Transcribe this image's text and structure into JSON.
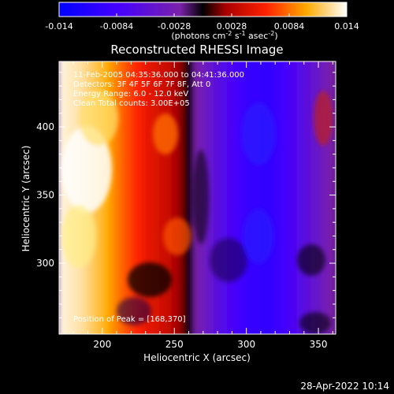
{
  "chart_data": {
    "type": "heatmap",
    "title": "Reconstructed RHESSI Image",
    "xlabel": "Heliocentric X (arcsec)",
    "ylabel": "Heliocentric Y (arcsec)",
    "xlim": [
      170,
      362
    ],
    "ylim": [
      248,
      448
    ],
    "x_ticks": [
      200,
      250,
      300,
      350
    ],
    "y_ticks": [
      300,
      350,
      400
    ],
    "colorbar": {
      "label_parts": [
        "(photons cm",
        "-2",
        " s",
        "-1",
        " asec",
        "-2",
        ")"
      ],
      "ticks": [
        "-0.014",
        "-0.0084",
        "-0.0028",
        "0.0028",
        "0.0084",
        "0.014"
      ],
      "range": [
        -0.014,
        0.014
      ]
    },
    "annotations": {
      "time_range": "11-Feb-2005 04:35:36.000 to 04:41:36.000",
      "detectors": "Detectors: 3F 4F 5F 6F 7F 8F, Att 0",
      "energy": "Energy Range: 6.0 - 12.0 keV",
      "clean": "Clean     Total counts: 3.00E+05",
      "peak": "Position of Peak = [168,370]"
    },
    "intensity_profile_x": [
      {
        "x": 170,
        "v": 0.0135
      },
      {
        "x": 185,
        "v": 0.0125
      },
      {
        "x": 200,
        "v": 0.0105
      },
      {
        "x": 215,
        "v": 0.0078
      },
      {
        "x": 230,
        "v": 0.0055
      },
      {
        "x": 245,
        "v": 0.004
      },
      {
        "x": 255,
        "v": 0.002
      },
      {
        "x": 265,
        "v": -0.003
      },
      {
        "x": 280,
        "v": -0.0065
      },
      {
        "x": 300,
        "v": -0.0095
      },
      {
        "x": 315,
        "v": -0.01
      },
      {
        "x": 335,
        "v": -0.007
      },
      {
        "x": 350,
        "v": -0.0045
      },
      {
        "x": 362,
        "v": -0.002
      }
    ]
  },
  "footer": {
    "timestamp": "28-Apr-2022 10:14"
  }
}
